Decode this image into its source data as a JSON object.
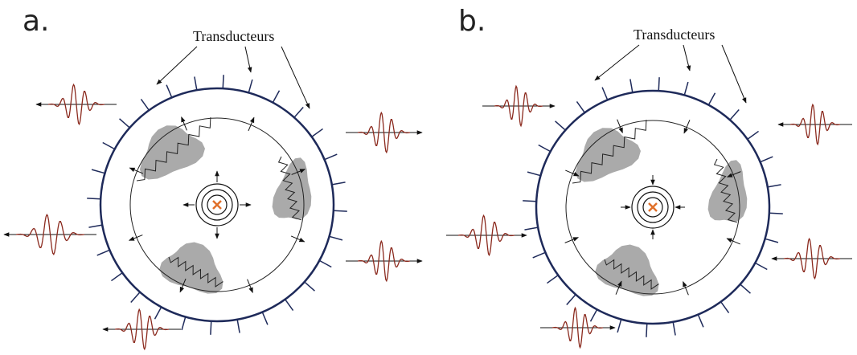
{
  "panels": [
    {
      "label": "a.",
      "annotation": "Transducteurs"
    },
    {
      "label": "b.",
      "annotation": "Transducteurs"
    }
  ]
}
